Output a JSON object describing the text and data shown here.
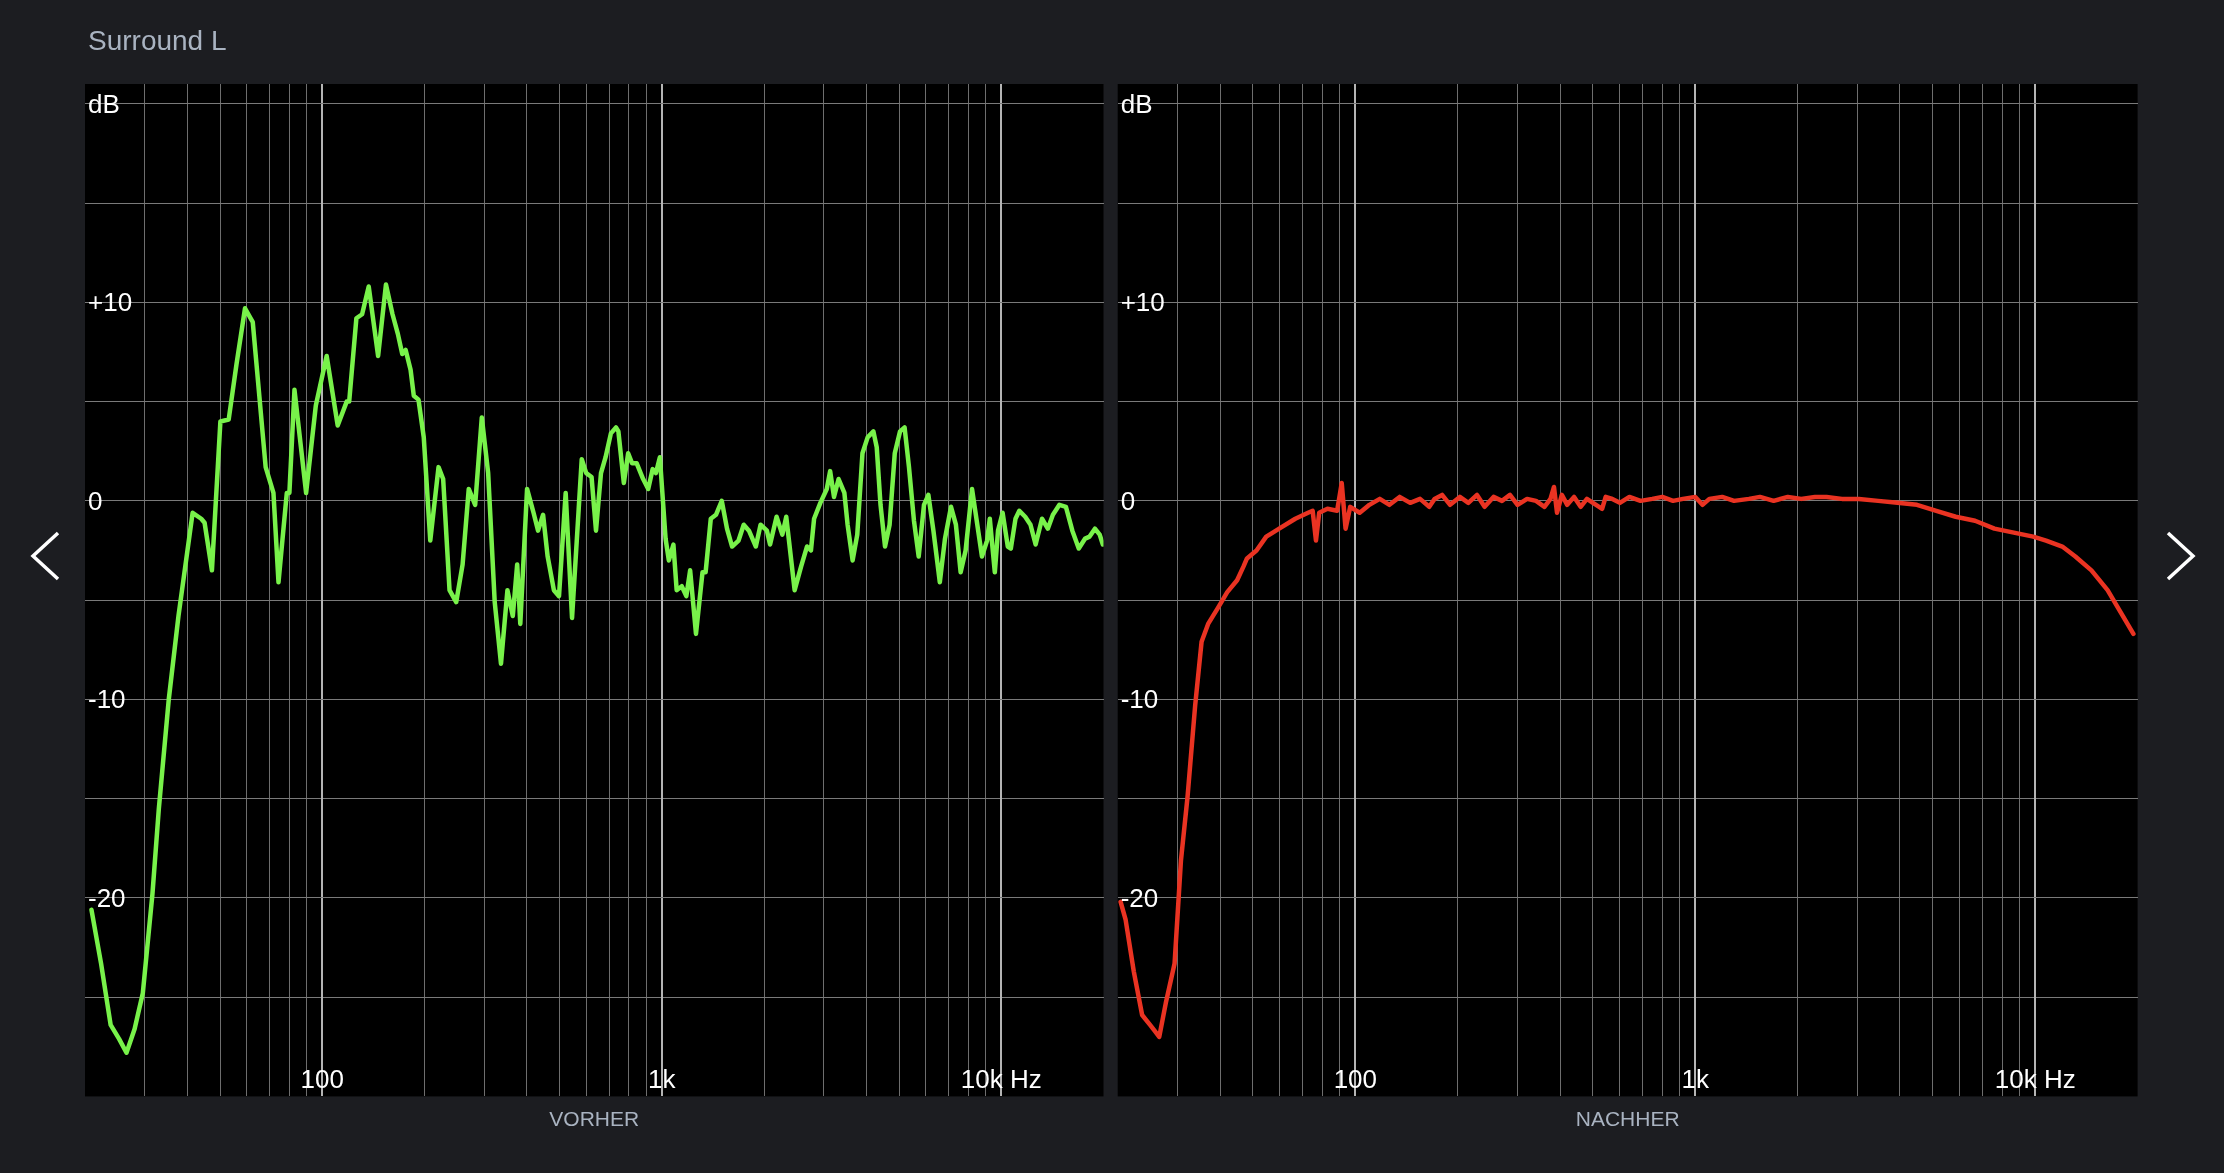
{
  "chart_data": [
    {
      "type": "line",
      "title": "Surround L",
      "xlabel": "VORHER",
      "log": "x",
      "grid": true,
      "xlim": [
        20,
        20000
      ],
      "ylim": [
        -30,
        21
      ],
      "xticks": [
        {
          "value": 30,
          "label": null
        },
        {
          "value": 40,
          "label": null
        },
        {
          "value": 50,
          "label": null
        },
        {
          "value": 60,
          "label": null
        },
        {
          "value": 70,
          "label": null
        },
        {
          "value": 80,
          "label": null
        },
        {
          "value": 90,
          "label": null
        },
        100,
        {
          "value": 200,
          "label": null
        },
        {
          "value": 300,
          "label": null
        },
        {
          "value": 400,
          "label": null
        },
        {
          "value": 500,
          "label": null
        },
        {
          "value": 600,
          "label": null
        },
        {
          "value": 700,
          "label": null
        },
        {
          "value": 800,
          "label": null
        },
        {
          "value": 900,
          "label": null
        },
        {
          "value": 1000,
          "label": "1k"
        },
        {
          "value": 2000,
          "label": null
        },
        {
          "value": 3000,
          "label": null
        },
        {
          "value": 4000,
          "label": null
        },
        {
          "value": 5000,
          "label": null
        },
        {
          "value": 6000,
          "label": null
        },
        {
          "value": 7000,
          "label": null
        },
        {
          "value": 8000,
          "label": null
        },
        {
          "value": 9000,
          "label": null
        },
        {
          "value": 10000,
          "label": "10k Hz"
        }
      ],
      "yticks": [
        {
          "value": 20,
          "label": "dB"
        },
        {
          "value": 15,
          "label": null
        },
        {
          "value": 10,
          "label": "+10"
        },
        {
          "value": 5,
          "label": null
        },
        0,
        {
          "value": -5,
          "label": null
        },
        -10,
        {
          "value": -15,
          "label": null
        },
        -20,
        {
          "value": -25,
          "label": null
        }
      ],
      "x": [
        20.9,
        22.3,
        23.8,
        25.2,
        26.5,
        28.0,
        29.6,
        31.6,
        33.0,
        35.3,
        37.7,
        41.5,
        44.0,
        45.0,
        47.3,
        50.1,
        53.0,
        55.9,
        59.2,
        62.4,
        68.1,
        71.8,
        74.3,
        78.6,
        80.0,
        82.8,
        89.6,
        95.7,
        103,
        111,
        118,
        120,
        126,
        131,
        137,
        146,
        154,
        161,
        167,
        172,
        176,
        182,
        186,
        192,
        199,
        208,
        220,
        227,
        237,
        248,
        259,
        270,
        282,
        295,
        308,
        322,
        336,
        351,
        364,
        375,
        383,
        401,
        419,
        432,
        447,
        461,
        481,
        498,
        521,
        544,
        581,
        599,
        621,
        640,
        662,
        683,
        708,
        733,
        745,
        773,
        796,
        817,
        843,
        881,
        912,
        940,
        961,
        987,
        1026,
        1049,
        1082,
        1106,
        1145,
        1181,
        1212,
        1261,
        1318,
        1346,
        1394,
        1444,
        1502,
        1556,
        1611,
        1683,
        1743,
        1806,
        1892,
        1954,
        2040,
        2084,
        2178,
        2265,
        2326,
        2462,
        2573,
        2677,
        2750,
        2809,
        2931,
        3062,
        3132,
        3215,
        3317,
        3450,
        3526,
        3648,
        3765,
        3900,
        4039,
        4200,
        4296,
        4408,
        4545,
        4688,
        4855,
        5032,
        5190,
        5346,
        5530,
        5710,
        5920,
        6098,
        6310,
        6590,
        6826,
        7110,
        7350,
        7590,
        7850,
        8200,
        8497,
        8770,
        9080,
        9250,
        9570,
        9780,
        10090,
        10450,
        10670,
        11010,
        11300,
        11760,
        12190,
        12620,
        13180,
        13710,
        14190,
        14830,
        15500,
        16190,
        16910,
        17660,
        18200,
        18870,
        19490,
        19910
      ],
      "series": [
        {
          "color": "#78f24a",
          "values": [
            -20.6,
            -23.3,
            -26.4,
            -27.1,
            -27.8,
            -26.6,
            -24.8,
            -19.8,
            -15.5,
            -10.0,
            -5.8,
            -0.6,
            -0.9,
            -1.1,
            -3.5,
            4.0,
            4.1,
            6.9,
            9.7,
            9.0,
            1.7,
            0.4,
            -4.1,
            0.4,
            0.4,
            5.6,
            0.4,
            4.8,
            7.3,
            3.8,
            5.0,
            5.0,
            9.2,
            9.4,
            10.8,
            7.3,
            10.9,
            9.4,
            8.4,
            7.4,
            7.6,
            6.6,
            5.3,
            5.1,
            3.2,
            -2.0,
            1.7,
            1.1,
            -4.5,
            -5.1,
            -3.2,
            0.6,
            -0.2,
            4.2,
            1.4,
            -5.1,
            -8.2,
            -4.5,
            -5.8,
            -3.2,
            -6.2,
            0.6,
            -0.6,
            -1.5,
            -0.7,
            -2.8,
            -4.5,
            -4.8,
            0.4,
            -5.9,
            2.1,
            1.4,
            1.2,
            -1.5,
            1.4,
            2.2,
            3.4,
            3.7,
            3.5,
            0.9,
            2.4,
            1.9,
            1.9,
            1.1,
            0.6,
            1.6,
            1.4,
            2.2,
            -1.9,
            -3.0,
            -2.2,
            -4.5,
            -4.3,
            -4.8,
            -3.5,
            -6.7,
            -3.6,
            -3.6,
            -0.9,
            -0.7,
            0.0,
            -1.4,
            -2.3,
            -2.0,
            -1.2,
            -1.5,
            -2.3,
            -1.2,
            -1.5,
            -2.2,
            -0.8,
            -1.7,
            -0.8,
            -4.5,
            -3.3,
            -2.3,
            -2.5,
            -0.9,
            -0.1,
            0.6,
            1.5,
            0.2,
            1.1,
            0.4,
            -1.2,
            -3.0,
            -1.7,
            2.4,
            3.2,
            3.5,
            2.7,
            -0.2,
            -2.3,
            -1.2,
            2.4,
            3.5,
            3.7,
            1.7,
            -1.0,
            -2.8,
            -0.2,
            0.3,
            -1.5,
            -4.1,
            -1.9,
            -0.3,
            -1.2,
            -3.6,
            -2.5,
            0.6,
            -1.2,
            -2.8,
            -2.0,
            -0.9,
            -3.6,
            -1.5,
            -0.6,
            -2.3,
            -2.4,
            -0.9,
            -0.5,
            -0.8,
            -1.2,
            -2.2,
            -0.9,
            -1.4,
            -0.7,
            -0.2,
            -0.3,
            -1.5,
            -2.4,
            -1.9,
            -1.8,
            -1.4,
            -1.7,
            -2.2
          ]
        }
      ]
    },
    {
      "type": "line",
      "xlabel": "NACHHER",
      "log": "x",
      "grid": true,
      "xlim": [
        20,
        20000
      ],
      "ylim": [
        -30,
        21
      ],
      "xticks": [
        {
          "value": 30,
          "label": null
        },
        {
          "value": 40,
          "label": null
        },
        {
          "value": 50,
          "label": null
        },
        {
          "value": 60,
          "label": null
        },
        {
          "value": 70,
          "label": null
        },
        {
          "value": 80,
          "label": null
        },
        {
          "value": 90,
          "label": null
        },
        100,
        {
          "value": 200,
          "label": null
        },
        {
          "value": 300,
          "label": null
        },
        {
          "value": 400,
          "label": null
        },
        {
          "value": 500,
          "label": null
        },
        {
          "value": 600,
          "label": null
        },
        {
          "value": 700,
          "label": null
        },
        {
          "value": 800,
          "label": null
        },
        {
          "value": 900,
          "label": null
        },
        {
          "value": 1000,
          "label": "1k"
        },
        {
          "value": 2000,
          "label": null
        },
        {
          "value": 3000,
          "label": null
        },
        {
          "value": 4000,
          "label": null
        },
        {
          "value": 5000,
          "label": null
        },
        {
          "value": 6000,
          "label": null
        },
        {
          "value": 7000,
          "label": null
        },
        {
          "value": 8000,
          "label": null
        },
        {
          "value": 9000,
          "label": null
        },
        {
          "value": 10000,
          "label": "10k Hz"
        }
      ],
      "yticks": [
        {
          "value": 20,
          "label": "dB"
        },
        {
          "value": 15,
          "label": null
        },
        {
          "value": 10,
          "label": "+10"
        },
        {
          "value": 5,
          "label": null
        },
        0,
        {
          "value": -5,
          "label": null
        },
        -10,
        {
          "value": -15,
          "label": null
        },
        -20,
        {
          "value": -25,
          "label": null
        }
      ],
      "x": [
        20.4,
        21.1,
        22.3,
        23.6,
        24.9,
        25.7,
        26.5,
        27.7,
        29.4,
        30.7,
        32.1,
        33.8,
        35.3,
        36.9,
        39.4,
        42.0,
        44.9,
        46.9,
        48.0,
        51.2,
        54.7,
        59.7,
        66.6,
        72.6,
        74.9,
        76.6,
        78.3,
        82.8,
        88.4,
        91.2,
        93.6,
        96.6,
        103,
        110,
        118,
        126,
        135,
        145,
        155,
        165,
        171,
        180,
        190,
        203,
        215,
        228,
        240,
        255,
        270,
        285,
        300,
        320,
        340,
        360,
        375,
        384,
        392,
        405,
        420,
        440,
        460,
        480,
        500,
        532,
        545,
        570,
        600,
        640,
        690,
        747,
        800,
        860,
        920,
        1000,
        1050,
        1100,
        1200,
        1300,
        1438,
        1550,
        1700,
        1871,
        2050,
        2250,
        2432,
        2700,
        3028,
        3451,
        3935,
        4487,
        5116,
        5833,
        6651,
        7583,
        8647,
        9860,
        10760,
        12010,
        13120,
        14630,
        16320,
        17820,
        19440
      ],
      "series": [
        {
          "color": "#ea3322",
          "values": [
            -20.2,
            -21.1,
            -23.7,
            -25.9,
            -26.4,
            -26.7,
            -27.0,
            -25.3,
            -23.3,
            -18.1,
            -14.9,
            -10.3,
            -7.1,
            -6.2,
            -5.4,
            -4.6,
            -4.0,
            -3.3,
            -2.9,
            -2.5,
            -1.8,
            -1.4,
            -0.9,
            -0.6,
            -0.5,
            -2.0,
            -0.6,
            -0.4,
            -0.5,
            0.9,
            -1.4,
            -0.3,
            -0.6,
            -0.2,
            0.1,
            -0.2,
            0.2,
            -0.1,
            0.1,
            -0.3,
            0.1,
            0.3,
            -0.2,
            0.2,
            -0.1,
            0.3,
            -0.3,
            0.2,
            0.0,
            0.3,
            -0.2,
            0.1,
            0.0,
            -0.3,
            0.1,
            0.7,
            -0.6,
            0.3,
            -0.2,
            0.2,
            -0.3,
            0.1,
            -0.1,
            -0.4,
            0.2,
            0.1,
            -0.1,
            0.2,
            0.0,
            0.1,
            0.2,
            0.0,
            0.1,
            0.2,
            -0.2,
            0.1,
            0.2,
            0.0,
            0.1,
            0.2,
            0.0,
            0.2,
            0.1,
            0.2,
            0.2,
            0.1,
            0.1,
            0.0,
            -0.1,
            -0.2,
            -0.5,
            -0.8,
            -1.0,
            -1.4,
            -1.6,
            -1.8,
            -2.0,
            -2.3,
            -2.8,
            -3.5,
            -4.5,
            -5.6,
            -6.7
          ]
        }
      ]
    }
  ]
}
